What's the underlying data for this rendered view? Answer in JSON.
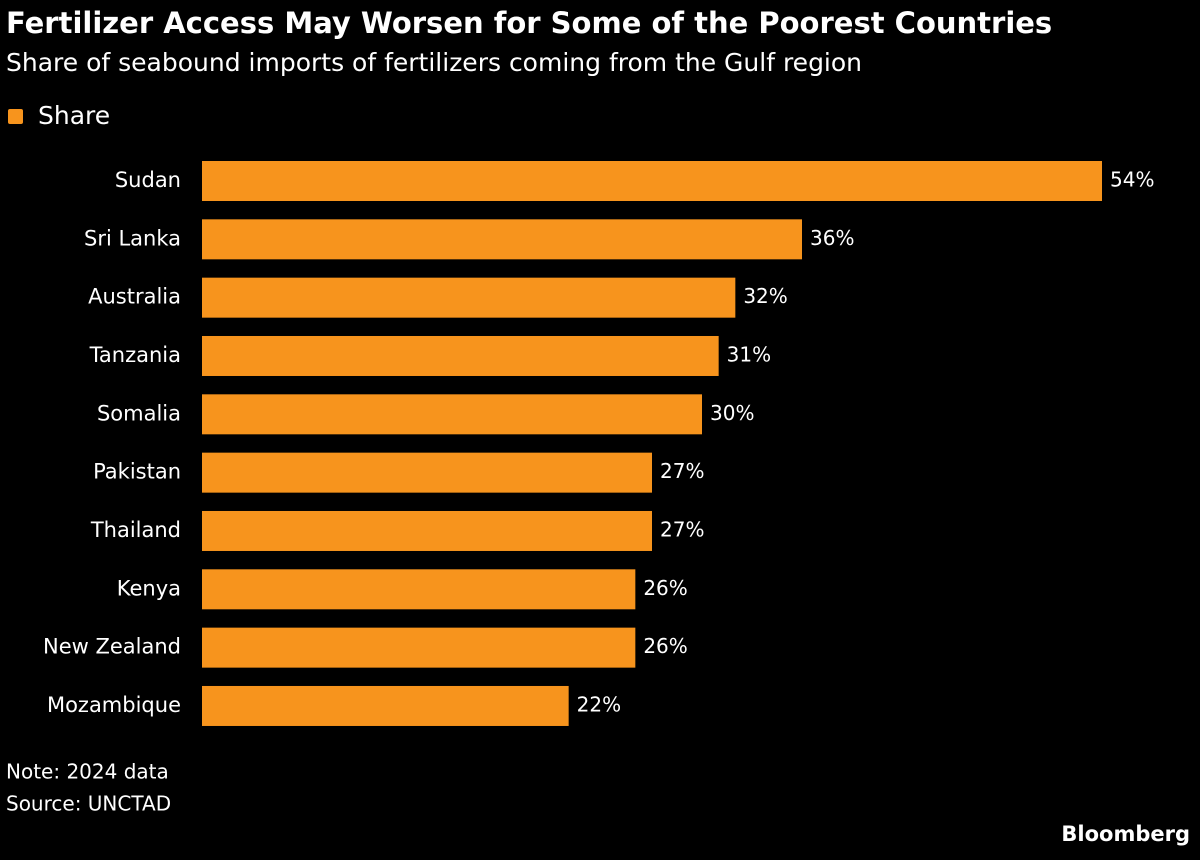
{
  "chart_data": {
    "type": "bar",
    "orientation": "horizontal",
    "title": "Fertilizer Access May Worsen for Some of the Poorest Countries",
    "subtitle": "Share of seabound imports of fertilizers coming from the Gulf region",
    "categories": [
      "Sudan",
      "Sri Lanka",
      "Australia",
      "Tanzania",
      "Somalia",
      "Pakistan",
      "Thailand",
      "Kenya",
      "New Zealand",
      "Mozambique"
    ],
    "series": [
      {
        "name": "Share",
        "color": "#f7941d",
        "values": [
          54,
          36,
          32,
          31,
          30,
          27,
          27,
          26,
          26,
          22
        ],
        "value_labels": [
          "54%",
          "36%",
          "32%",
          "31%",
          "30%",
          "27%",
          "27%",
          "26%",
          "26%",
          "22%"
        ]
      }
    ],
    "note": "Note: 2024 data",
    "source": "Source: UNCTAD",
    "credit": "Bloomberg"
  }
}
